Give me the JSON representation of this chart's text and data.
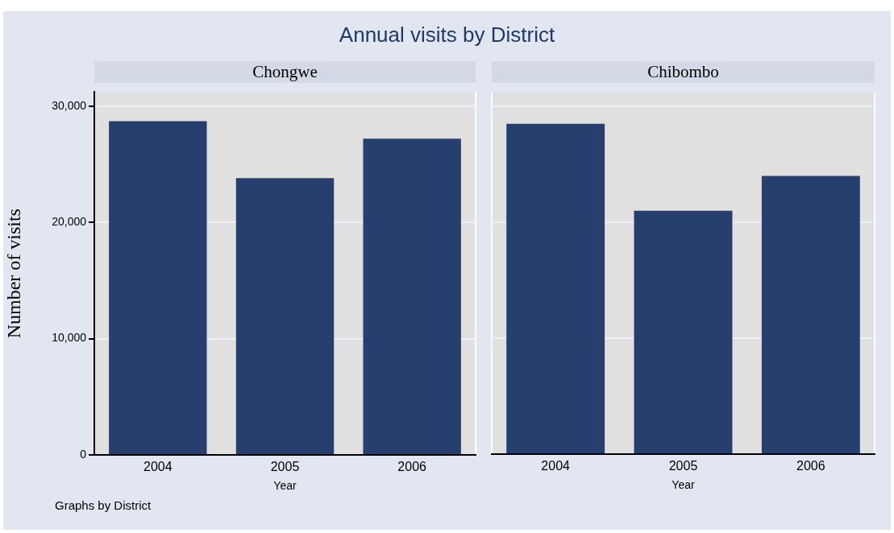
{
  "chart_data": [
    {
      "type": "bar",
      "title": "Annual visits by District",
      "subtitle": "Chongwe",
      "xlabel": "Year",
      "ylabel": "Number of visits",
      "categories": [
        "2004",
        "2005",
        "2006"
      ],
      "values": [
        28700,
        23800,
        27200
      ],
      "color": "#273f6e",
      "ylim": [
        0,
        31200
      ],
      "yticks": [
        0,
        {
          "value": 10000,
          "label": "10,000"
        },
        {
          "value": 20000,
          "label": "20,000"
        },
        {
          "value": 30000,
          "label": "30,000"
        }
      ],
      "grid": "y",
      "annotations": [
        "Graphs by District"
      ]
    },
    {
      "type": "bar",
      "subtitle": "Chibombo",
      "xlabel": "Year",
      "categories": [
        "2004",
        "2005",
        "2006"
      ],
      "values": [
        28500,
        21000,
        24000
      ],
      "color": "#273f6e",
      "ylim": [
        0,
        31200
      ],
      "yticks": [
        0,
        10000,
        20000,
        30000
      ],
      "grid": "y",
      "tick_labels": "x"
    }
  ]
}
